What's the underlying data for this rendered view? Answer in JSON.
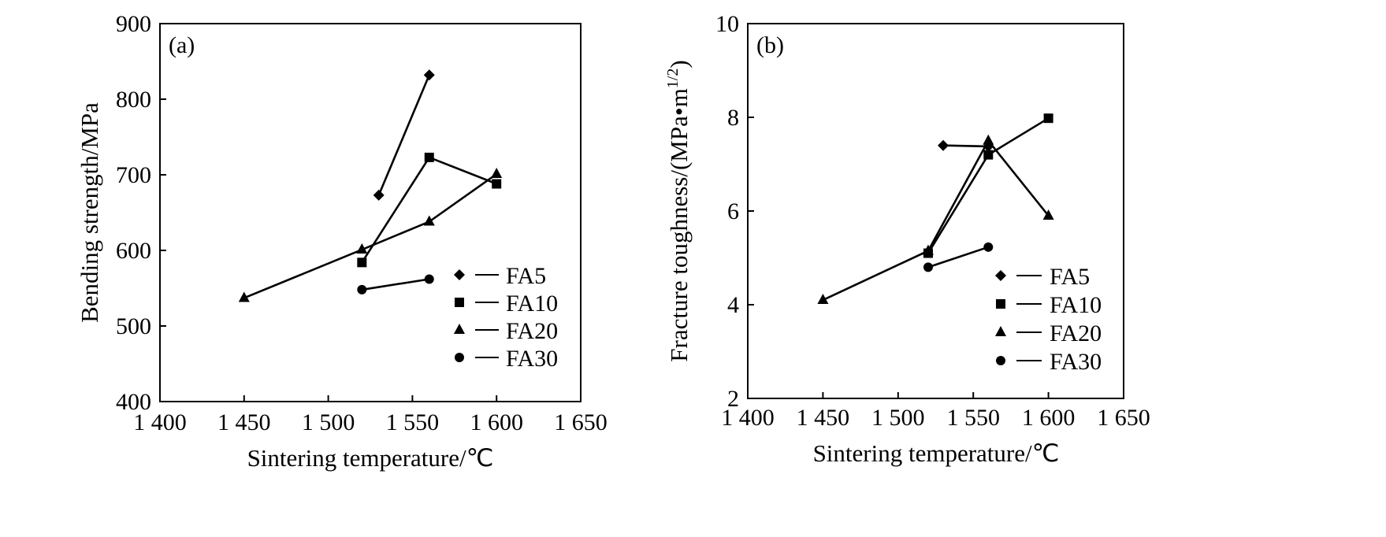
{
  "chart_data": [
    {
      "type": "line",
      "panel_label": "(a)",
      "xlabel": "Sintering temperature/℃",
      "ylabel": "Bending strength/MPa",
      "xlim": [
        1400,
        1650
      ],
      "ylim": [
        400,
        900
      ],
      "x_ticks": [
        1400,
        1450,
        1500,
        1550,
        1600,
        1650
      ],
      "x_tick_labels": [
        "1 400",
        "1 450",
        "1 500",
        "1 550",
        "1 600",
        "1 650"
      ],
      "y_ticks": [
        400,
        500,
        600,
        700,
        800,
        900
      ],
      "y_tick_labels": [
        "400",
        "500",
        "600",
        "700",
        "800",
        "900"
      ],
      "legend_position": "lower-right",
      "series": [
        {
          "name": "FA5",
          "marker": "diamond",
          "x": [
            1530,
            1560
          ],
          "y": [
            673,
            832
          ]
        },
        {
          "name": "FA10",
          "marker": "square",
          "x": [
            1520,
            1560,
            1600
          ],
          "y": [
            584,
            723,
            688
          ]
        },
        {
          "name": "FA20",
          "marker": "triangle",
          "x": [
            1450,
            1520,
            1560,
            1600
          ],
          "y": [
            537,
            601,
            638,
            701
          ]
        },
        {
          "name": "FA30",
          "marker": "circle",
          "x": [
            1520,
            1560
          ],
          "y": [
            548,
            562
          ]
        }
      ]
    },
    {
      "type": "line",
      "panel_label": "(b)",
      "xlabel": "Sintering temperature/℃",
      "ylabel": "Fracture toughness/(MPa•m",
      "ylabel_sup": "1/2",
      "ylabel_suffix": ")",
      "xlim": [
        1400,
        1650
      ],
      "ylim": [
        2,
        10
      ],
      "x_ticks": [
        1400,
        1450,
        1500,
        1550,
        1600,
        1650
      ],
      "x_tick_labels": [
        "1 400",
        "1 450",
        "1 500",
        "1 550",
        "1 600",
        "1 650"
      ],
      "y_ticks": [
        2,
        4,
        6,
        8,
        10
      ],
      "y_tick_labels": [
        "2",
        "4",
        "6",
        "8",
        "10"
      ],
      "legend_position": "lower-right",
      "series": [
        {
          "name": "FA5",
          "marker": "diamond",
          "x": [
            1530,
            1560
          ],
          "y": [
            7.4,
            7.38
          ]
        },
        {
          "name": "FA10",
          "marker": "square",
          "x": [
            1520,
            1560,
            1600
          ],
          "y": [
            5.1,
            7.2,
            7.98
          ]
        },
        {
          "name": "FA20",
          "marker": "triangle",
          "x": [
            1450,
            1520,
            1560,
            1600
          ],
          "y": [
            4.1,
            5.15,
            7.5,
            5.9
          ]
        },
        {
          "name": "FA30",
          "marker": "circle",
          "x": [
            1520,
            1560
          ],
          "y": [
            4.8,
            5.23
          ]
        }
      ]
    }
  ]
}
